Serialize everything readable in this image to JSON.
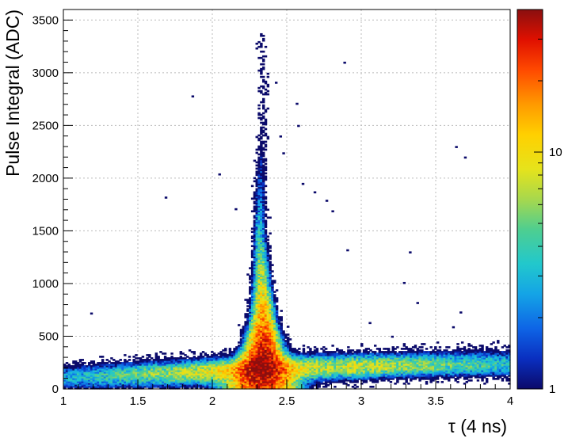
{
  "chart_data": {
    "type": "heatmap",
    "title": "",
    "xlabel": "τ  (4 ns)",
    "ylabel": "Pulse Integral  (ADC)",
    "xlim": [
      1,
      4
    ],
    "ylim": [
      0,
      3600
    ],
    "x_ticks": [
      {
        "value": 1,
        "label": "1"
      },
      {
        "value": 1.5,
        "label": "1.5"
      },
      {
        "value": 2,
        "label": "2"
      },
      {
        "value": 2.5,
        "label": "2.5"
      },
      {
        "value": 3,
        "label": "3"
      },
      {
        "value": 3.5,
        "label": "3.5"
      },
      {
        "value": 4,
        "label": "4"
      }
    ],
    "y_ticks": [
      {
        "value": 0,
        "label": "0"
      },
      {
        "value": 500,
        "label": "500"
      },
      {
        "value": 1000,
        "label": "1000"
      },
      {
        "value": 1500,
        "label": "1500"
      },
      {
        "value": 2000,
        "label": "2000"
      },
      {
        "value": 2500,
        "label": "2500"
      },
      {
        "value": 3000,
        "label": "3000"
      },
      {
        "value": 3500,
        "label": "3500"
      }
    ],
    "grid": true,
    "colorbar": {
      "scale": "log",
      "range": [
        1,
        40
      ],
      "ticks": [
        {
          "value": 1,
          "label": "1"
        },
        {
          "value": 10,
          "label": "10"
        }
      ]
    },
    "bins": {
      "x_bins": 200,
      "x_range": [
        1,
        4
      ],
      "y_bins": 240,
      "y_range": [
        0,
        3600
      ]
    },
    "features": {
      "peak_tau": 2.33,
      "peak_integral": 250,
      "max_count": 40,
      "tail_max_integral": 3370
    },
    "outliers": [
      [
        1.18,
        710
      ],
      [
        1.68,
        1810
      ],
      [
        1.86,
        2770
      ],
      [
        2.04,
        2030
      ],
      [
        2.15,
        1700
      ],
      [
        2.42,
        2900
      ],
      [
        2.45,
        2390
      ],
      [
        2.47,
        2230
      ],
      [
        2.56,
        2700
      ],
      [
        2.57,
        2490
      ],
      [
        2.6,
        1940
      ],
      [
        2.68,
        1860
      ],
      [
        2.76,
        1780
      ],
      [
        2.8,
        1680
      ],
      [
        2.88,
        3090
      ],
      [
        3.32,
        1290
      ],
      [
        3.28,
        1000
      ],
      [
        3.37,
        810
      ],
      [
        3.63,
        2290
      ],
      [
        3.69,
        2190
      ],
      [
        3.66,
        720
      ],
      [
        3.2,
        490
      ],
      [
        3.61,
        580
      ],
      [
        2.9,
        1310
      ],
      [
        3.05,
        620
      ]
    ]
  }
}
